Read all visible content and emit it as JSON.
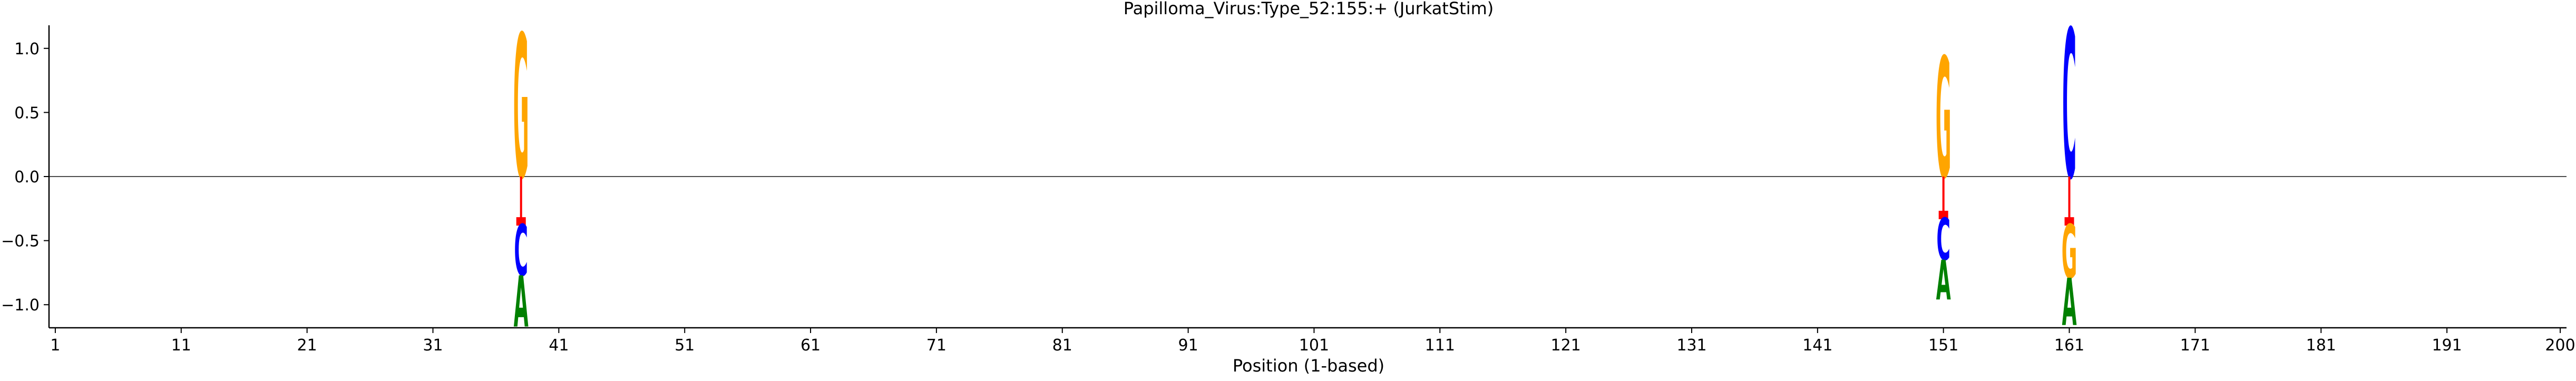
{
  "chart_data": {
    "type": "sequence-logo",
    "title": "Papilloma_Virus:Type_52:155:+  (JurkatStim)",
    "xlabel": "Position (1-based)",
    "ylabel": "",
    "xlim": [
      0.5,
      200.5
    ],
    "ylim": [
      -1.18,
      1.18
    ],
    "xticks": [
      1,
      11,
      21,
      31,
      41,
      51,
      61,
      71,
      81,
      91,
      101,
      111,
      121,
      131,
      141,
      151,
      161,
      171,
      181,
      191,
      200
    ],
    "yticks": [
      1.0,
      0.5,
      0.0,
      -0.5,
      -1.0
    ],
    "ytick_labels": [
      "1.0",
      "0.5",
      "0.0",
      "−1.0"
    ],
    "ytick_labels_full": [
      "1.0",
      "0.5",
      "0.0",
      "−0.5",
      "−1.0"
    ],
    "zero_line": true,
    "grid": false,
    "letter_colors": {
      "A": "#008000",
      "C": "#0000ff",
      "G": "#ffa500",
      "T": "#ff0000"
    },
    "positions": [
      {
        "x": 38,
        "above": [
          {
            "base": "G",
            "height": 1.12
          }
        ],
        "below": [
          {
            "base": "C",
            "height": 0.4
          },
          {
            "base": "A",
            "height": 0.4
          }
        ],
        "marker_y": -0.35
      },
      {
        "x": 151,
        "above": [
          {
            "base": "G",
            "height": 0.94
          }
        ],
        "below": [
          {
            "base": "C",
            "height": 0.33
          },
          {
            "base": "A",
            "height": 0.31
          }
        ],
        "marker_y": -0.3
      },
      {
        "x": 161,
        "above": [
          {
            "base": "C",
            "height": 1.16
          }
        ],
        "below": [
          {
            "base": "G",
            "height": 0.42
          },
          {
            "base": "A",
            "height": 0.37
          }
        ],
        "marker_y": -0.35
      }
    ],
    "stem_color": "#ff0000",
    "marker_color": "#ff0000"
  }
}
